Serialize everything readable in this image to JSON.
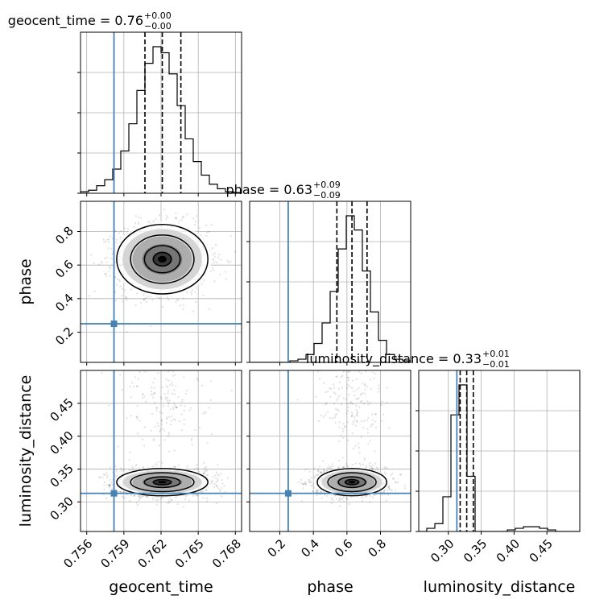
{
  "chart_data": {
    "type": "corner",
    "parameters": [
      "geocent_time",
      "phase",
      "luminosity_distance"
    ],
    "truths": {
      "geocent_time": 0.7582,
      "phase": 0.25,
      "luminosity_distance": 0.313
    },
    "truth_color": "#4682b4",
    "grid": true,
    "titles": [
      {
        "param": "geocent_time",
        "text": "geocent_time = 0.76",
        "upper": "+0.00",
        "lower": "−0.00"
      },
      {
        "param": "phase",
        "text": "phase = 0.63",
        "upper": "+0.09",
        "lower": "−0.09"
      },
      {
        "param": "luminosity_distance",
        "text": "luminosity_distance = 0.33",
        "upper": "+0.01",
        "lower": "−0.01"
      }
    ],
    "axis_labels": {
      "geocent_time": "geocent_time",
      "phase": "phase",
      "luminosity_distance": "luminosity_distance"
    },
    "ranges": {
      "geocent_time": [
        0.7555,
        0.7685
      ],
      "phase": [
        0.02,
        0.98
      ],
      "luminosity_distance": [
        0.255,
        0.5
      ]
    },
    "ticks": {
      "geocent_time": {
        "values": [
          0.756,
          0.759,
          0.762,
          0.765,
          0.768
        ],
        "labels": [
          "0.756",
          "0.759",
          "0.762",
          "0.765",
          "0.768"
        ]
      },
      "phase_x": {
        "values": [
          0.2,
          0.4,
          0.6,
          0.8
        ],
        "labels": [
          "0.2",
          "0.4",
          "0.6",
          "0.8"
        ]
      },
      "phase_y": {
        "values": [
          0.2,
          0.4,
          0.6,
          0.8
        ],
        "labels": [
          "0.2",
          "0.4",
          "0.6",
          "0.8"
        ]
      },
      "luminosity_distance": {
        "values": [
          0.3,
          0.35,
          0.4,
          0.45
        ],
        "labels": [
          "0.30",
          "0.35",
          "0.40",
          "0.45"
        ]
      }
    },
    "histograms": {
      "geocent_time": {
        "edges": [
          0.7555,
          0.75615,
          0.7568,
          0.75745,
          0.7581,
          0.75875,
          0.7594,
          0.76005,
          0.7607,
          0.76135,
          0.762,
          0.76265,
          0.7633,
          0.76395,
          0.7646,
          0.76525,
          0.7659,
          0.76655,
          0.7672,
          0.76785,
          0.7685
        ],
        "counts": [
          0.01,
          0.02,
          0.05,
          0.09,
          0.16,
          0.28,
          0.46,
          0.68,
          0.86,
          0.97,
          0.93,
          0.79,
          0.58,
          0.36,
          0.21,
          0.12,
          0.06,
          0.03,
          0.01,
          0.005
        ],
        "quantiles": [
          0.7607,
          0.7621,
          0.7636
        ]
      },
      "phase": {
        "edges": [
          0.02,
          0.068,
          0.116,
          0.164,
          0.212,
          0.26,
          0.308,
          0.356,
          0.404,
          0.452,
          0.5,
          0.548,
          0.596,
          0.644,
          0.692,
          0.74,
          0.788,
          0.836,
          0.884,
          0.932,
          0.98
        ],
        "counts": [
          0,
          0,
          0,
          0,
          0,
          0.01,
          0.02,
          0.05,
          0.12,
          0.25,
          0.45,
          0.72,
          0.93,
          0.84,
          0.58,
          0.32,
          0.14,
          0.05,
          0.02,
          0.01
        ],
        "quantiles": [
          0.54,
          0.63,
          0.72
        ]
      },
      "luminosity_distance": {
        "edges": [
          0.255,
          0.26725,
          0.2795,
          0.29175,
          0.304,
          0.31625,
          0.3285,
          0.34075,
          0.353,
          0.36525,
          0.3775,
          0.38975,
          0.402,
          0.41425,
          0.4265,
          0.43875,
          0.451,
          0.46325,
          0.4755,
          0.48775,
          0.5
        ],
        "counts": [
          0.0,
          0.02,
          0.05,
          0.22,
          0.74,
          0.93,
          0.35,
          0.0,
          0.0,
          0.0,
          0.0,
          0.01,
          0.02,
          0.03,
          0.03,
          0.02,
          0.01,
          0.0,
          0.0,
          0.0
        ],
        "quantiles": [
          0.318,
          0.328,
          0.338
        ]
      }
    },
    "posterior_2d": {
      "geocent_time_phase": {
        "x_mean": 0.7621,
        "y_mean": 0.635,
        "x_sd": 0.0016,
        "y_sd": 0.09
      },
      "geocent_time_luminosity_distance": {
        "x_mean": 0.7621,
        "y_mean": 0.33,
        "x_sd": 0.0016,
        "y_sd": 0.009,
        "secondary": {
          "x_mean": 0.7621,
          "y_mean": 0.455,
          "x_sd": 0.0016,
          "y_sd": 0.025,
          "fraction": 0.1
        }
      },
      "phase_luminosity_distance": {
        "x_mean": 0.63,
        "y_mean": 0.33,
        "x_sd": 0.09,
        "y_sd": 0.009,
        "secondary": {
          "x_mean": 0.63,
          "y_mean": 0.455,
          "x_sd": 0.09,
          "y_sd": 0.025,
          "fraction": 0.1
        }
      }
    }
  }
}
